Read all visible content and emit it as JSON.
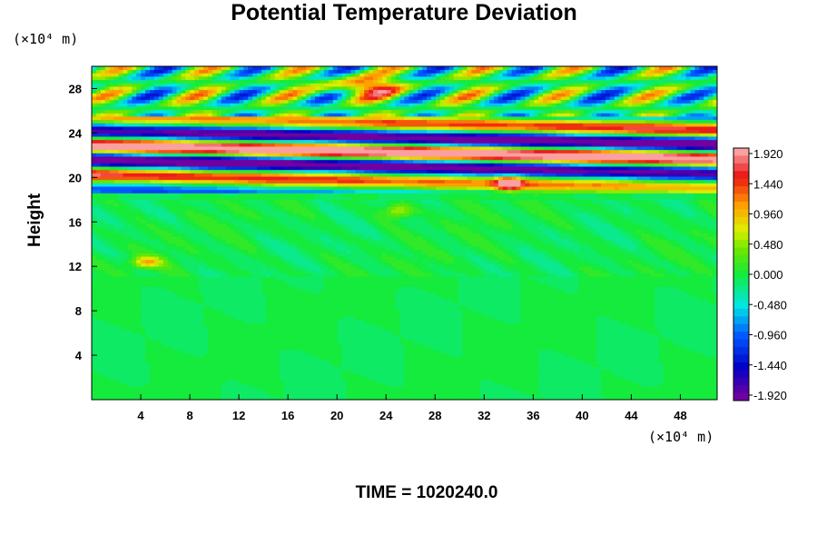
{
  "chart_data": {
    "type": "heatmap",
    "title": "Potential Temperature Deviation",
    "xlabel": "",
    "ylabel": "Height",
    "x_unit_label": "(×10⁴ m)",
    "y_unit_label": "(×10⁴ m)",
    "xlim": [
      0,
      51
    ],
    "ylim": [
      0,
      30
    ],
    "x_ticks": [
      4,
      8,
      12,
      16,
      20,
      24,
      28,
      32,
      36,
      40,
      44,
      48
    ],
    "y_ticks": [
      4,
      8,
      12,
      16,
      20,
      24,
      28
    ],
    "colorbar": {
      "min": -1.92,
      "max": 1.92,
      "tick_values": [
        1.92,
        1.44,
        0.96,
        0.48,
        0.0,
        -0.48,
        -0.96,
        -1.44,
        -1.92
      ],
      "tick_labels": [
        "1.920",
        "1.440",
        "0.960",
        "0.480",
        "0.000",
        "-0.480",
        "-0.960",
        "-1.440",
        "-1.920"
      ],
      "levels": 33
    },
    "field_description": "Near-zero values (green) below ~19; strong alternating positive/negative layers between ~19 and ~25; wavy mixed structure from ~25 to 30. Local positive patch near x≈4.5, y≈12.5 and x≈34, y≈19.5; warm blob near x≈22, y≈28.",
    "footer_label": "TIME",
    "footer_value": "1020240.0"
  },
  "footer_text": "TIME = 1020240.0"
}
